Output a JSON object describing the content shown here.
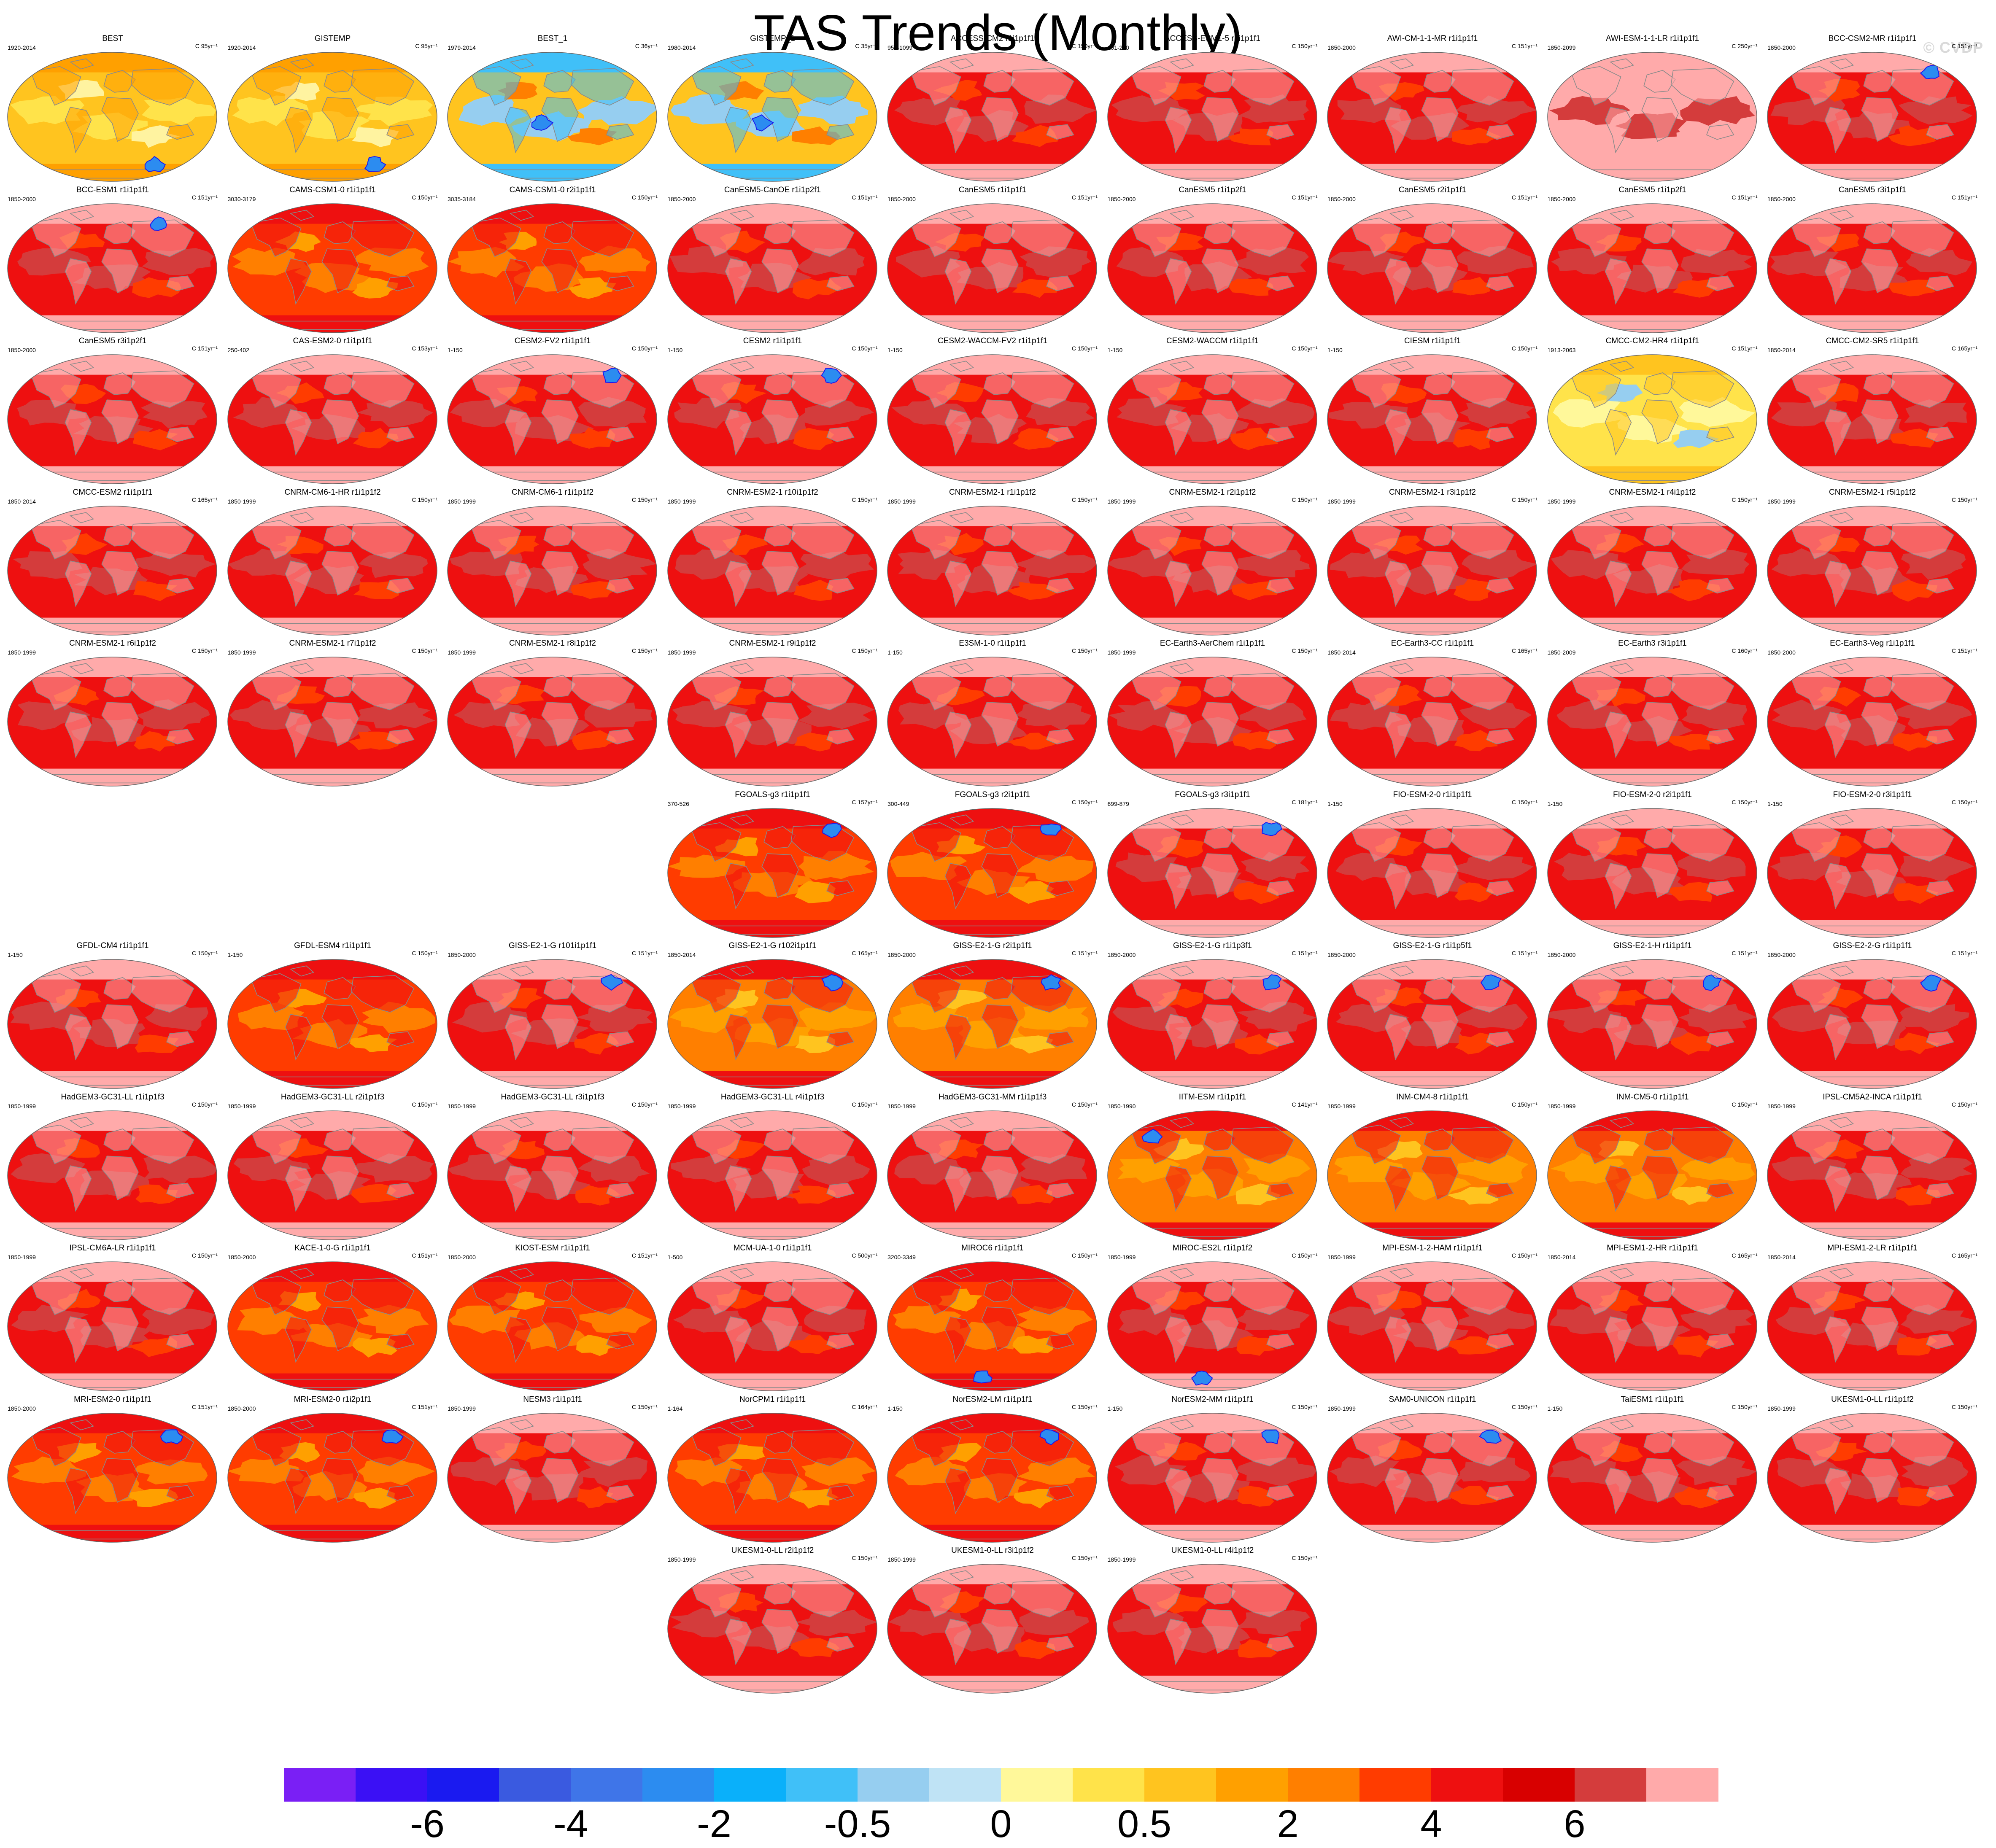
{
  "title": "TAS Trends (Monthly)",
  "watermark": "© CVDP",
  "colorbar": {
    "colors": [
      "#7a1ff5",
      "#3b10f5",
      "#1a1af0",
      "#3a5ae0",
      "#3f75e8",
      "#2c8cf0",
      "#0ab0fa",
      "#40c0f8",
      "#96cef0",
      "#bfe3f5",
      "#fff89a",
      "#ffe34a",
      "#ffc41f",
      "#ffa000",
      "#ff7f00",
      "#ff3c00",
      "#ee1010",
      "#d80000",
      "#d43c3c",
      "#ffaaaa"
    ],
    "labels": [
      {
        "text": "-6",
        "index": 2
      },
      {
        "text": "-4",
        "index": 4
      },
      {
        "text": "-2",
        "index": 6
      },
      {
        "text": "-0.5",
        "index": 8
      },
      {
        "text": "0",
        "index": 10
      },
      {
        "text": "0.5",
        "index": 12
      },
      {
        "text": "2",
        "index": 14
      },
      {
        "text": "4",
        "index": 16
      },
      {
        "text": "6",
        "index": 18
      }
    ]
  },
  "style_palettes": {
    "obs": [
      "#ffc41f",
      "#ffe34a",
      "#ffa000",
      "#fff3a0"
    ],
    "obs1": [
      "#ffc41f",
      "#96cef0",
      "#40c0f8",
      "#ff7f00"
    ],
    "model": [
      "#ee1010",
      "#d43c3c",
      "#ffaaaa",
      "#ff3c00"
    ],
    "awi": [
      "#ffaaaa",
      "#d43c3c",
      "#ffaaaa",
      "#ffaaaa"
    ],
    "cmcc_hr4": [
      "#ffe34a",
      "#fff89a",
      "#ffc41f",
      "#96cef0"
    ],
    "orange": [
      "#ff7f00",
      "#ffa000",
      "#ee1010",
      "#ffc41f"
    ],
    "orangered": [
      "#ff3c00",
      "#ff7f00",
      "#ee1010",
      "#ffa000"
    ]
  },
  "panels": [
    {
      "row": 0,
      "col": 0,
      "title": "BEST",
      "range": "1920-2014",
      "rate": "C 95yr⁻¹",
      "style": "obs",
      "blue": [
        0.7,
        0.82
      ]
    },
    {
      "row": 0,
      "col": 1,
      "title": "GISTEMP",
      "range": "1920-2014",
      "rate": "C 95yr⁻¹",
      "style": "obs",
      "blue": [
        0.7,
        0.82
      ]
    },
    {
      "row": 0,
      "col": 2,
      "title": "BEST_1",
      "range": "1979-2014",
      "rate": "C 36yr⁻¹",
      "style": "obs1",
      "blue": [
        0.45,
        0.5
      ]
    },
    {
      "row": 0,
      "col": 3,
      "title": "GISTEMP_1",
      "range": "1980-2014",
      "rate": "C 35yr⁻¹",
      "style": "obs1",
      "blue": [
        0.45,
        0.5
      ]
    },
    {
      "row": 0,
      "col": 4,
      "title": "ACCESS-CM2 r1i1p1f1",
      "range": "950-1099",
      "rate": "C 150yr⁻¹",
      "style": "model"
    },
    {
      "row": 0,
      "col": 5,
      "title": "ACCESS-ESM1-5 r1i1p1f1",
      "range": "101-250",
      "rate": "C 150yr⁻¹",
      "style": "model"
    },
    {
      "row": 0,
      "col": 6,
      "title": "AWI-CM-1-1-MR r1i1p1f1",
      "range": "1850-2000",
      "rate": "C 151yr⁻¹",
      "style": "model"
    },
    {
      "row": 0,
      "col": 7,
      "title": "AWI-ESM-1-1-LR r1i1p1f1",
      "range": "1850-2099",
      "rate": "C 250yr⁻¹",
      "style": "awi"
    },
    {
      "row": 0,
      "col": 8,
      "title": "BCC-CSM2-MR r1i1p1f1",
      "range": "1850-2000",
      "rate": "C 151yr⁻¹",
      "style": "model",
      "blue": [
        0.78,
        0.12
      ]
    },
    {
      "row": 1,
      "col": 0,
      "title": "BCC-ESM1 r1i1p1f1",
      "range": "1850-2000",
      "rate": "C 151yr⁻¹",
      "style": "model",
      "blue": [
        0.72,
        0.12
      ]
    },
    {
      "row": 1,
      "col": 1,
      "title": "CAMS-CSM1-0 r1i1p1f1",
      "range": "3030-3179",
      "rate": "C 150yr⁻¹",
      "style": "orangered"
    },
    {
      "row": 1,
      "col": 2,
      "title": "CAMS-CSM1-0 r2i1p1f1",
      "range": "3035-3184",
      "rate": "C 150yr⁻¹",
      "style": "orangered"
    },
    {
      "row": 1,
      "col": 3,
      "title": "CanESM5-CanOE r1i1p2f1",
      "range": "1850-2000",
      "rate": "C 151yr⁻¹",
      "style": "model"
    },
    {
      "row": 1,
      "col": 4,
      "title": "CanESM5 r1i1p1f1",
      "range": "1850-2000",
      "rate": "C 151yr⁻¹",
      "style": "model"
    },
    {
      "row": 1,
      "col": 5,
      "title": "CanESM5 r1i1p2f1",
      "range": "1850-2000",
      "rate": "C 151yr⁻¹",
      "style": "model"
    },
    {
      "row": 1,
      "col": 6,
      "title": "CanESM5 r2i1p1f1",
      "range": "1850-2000",
      "rate": "C 151yr⁻¹",
      "style": "model"
    },
    {
      "row": 1,
      "col": 7,
      "title": "CanESM5 r1i1p2f1",
      "range": "1850-2000",
      "rate": "C 151yr⁻¹",
      "style": "model"
    },
    {
      "row": 1,
      "col": 8,
      "title": "CanESM5 r3i1p1f1",
      "range": "1850-2000",
      "rate": "C 151yr⁻¹",
      "style": "model"
    },
    {
      "row": 2,
      "col": 0,
      "title": "CanESM5 r3i1p2f1",
      "range": "1850-2000",
      "rate": "C 151yr⁻¹",
      "style": "model"
    },
    {
      "row": 2,
      "col": 1,
      "title": "CAS-ESM2-0 r1i1p1f1",
      "range": "250-402",
      "rate": "C 153yr⁻¹",
      "style": "model"
    },
    {
      "row": 2,
      "col": 2,
      "title": "CESM2-FV2 r1i1p1f1",
      "range": "1-150",
      "rate": "C 150yr⁻¹",
      "style": "model",
      "blue": [
        0.78,
        0.12
      ]
    },
    {
      "row": 2,
      "col": 3,
      "title": "CESM2 r1i1p1f1",
      "range": "1-150",
      "rate": "C 150yr⁻¹",
      "style": "model",
      "blue": [
        0.78,
        0.12
      ]
    },
    {
      "row": 2,
      "col": 4,
      "title": "CESM2-WACCM-FV2 r1i1p1f1",
      "range": "1-150",
      "rate": "C 150yr⁻¹",
      "style": "model"
    },
    {
      "row": 2,
      "col": 5,
      "title": "CESM2-WACCM r1i1p1f1",
      "range": "1-150",
      "rate": "C 150yr⁻¹",
      "style": "model"
    },
    {
      "row": 2,
      "col": 6,
      "title": "CIESM r1i1p1f1",
      "range": "1-150",
      "rate": "C 150yr⁻¹",
      "style": "model"
    },
    {
      "row": 2,
      "col": 7,
      "title": "CMCC-CM2-HR4 r1i1p1f1",
      "range": "1913-2063",
      "rate": "C 151yr⁻¹",
      "style": "cmcc_hr4"
    },
    {
      "row": 2,
      "col": 8,
      "title": "CMCC-CM2-SR5 r1i1p1f1",
      "range": "1850-2014",
      "rate": "C 165yr⁻¹",
      "style": "model"
    },
    {
      "row": 3,
      "col": 0,
      "title": "CMCC-ESM2 r1i1p1f1",
      "range": "1850-2014",
      "rate": "C 165yr⁻¹",
      "style": "model"
    },
    {
      "row": 3,
      "col": 1,
      "title": "CNRM-CM6-1-HR r1i1p1f2",
      "range": "1850-1999",
      "rate": "C 150yr⁻¹",
      "style": "model"
    },
    {
      "row": 3,
      "col": 2,
      "title": "CNRM-CM6-1 r1i1p1f2",
      "range": "1850-1999",
      "rate": "C 150yr⁻¹",
      "style": "model"
    },
    {
      "row": 3,
      "col": 3,
      "title": "CNRM-ESM2-1 r10i1p1f2",
      "range": "1850-1999",
      "rate": "C 150yr⁻¹",
      "style": "model"
    },
    {
      "row": 3,
      "col": 4,
      "title": "CNRM-ESM2-1 r1i1p1f2",
      "range": "1850-1999",
      "rate": "C 150yr⁻¹",
      "style": "model"
    },
    {
      "row": 3,
      "col": 5,
      "title": "CNRM-ESM2-1 r2i1p1f2",
      "range": "1850-1999",
      "rate": "C 150yr⁻¹",
      "style": "model"
    },
    {
      "row": 3,
      "col": 6,
      "title": "CNRM-ESM2-1 r3i1p1f2",
      "range": "1850-1999",
      "rate": "C 150yr⁻¹",
      "style": "model"
    },
    {
      "row": 3,
      "col": 7,
      "title": "CNRM-ESM2-1 r4i1p1f2",
      "range": "1850-1999",
      "rate": "C 150yr⁻¹",
      "style": "model"
    },
    {
      "row": 3,
      "col": 8,
      "title": "CNRM-ESM2-1 r5i1p1f2",
      "range": "1850-1999",
      "rate": "C 150yr⁻¹",
      "style": "model"
    },
    {
      "row": 4,
      "col": 0,
      "title": "CNRM-ESM2-1 r6i1p1f2",
      "range": "1850-1999",
      "rate": "C 150yr⁻¹",
      "style": "model"
    },
    {
      "row": 4,
      "col": 1,
      "title": "CNRM-ESM2-1 r7i1p1f2",
      "range": "1850-1999",
      "rate": "C 150yr⁻¹",
      "style": "model"
    },
    {
      "row": 4,
      "col": 2,
      "title": "CNRM-ESM2-1 r8i1p1f2",
      "range": "1850-1999",
      "rate": "C 150yr⁻¹",
      "style": "model"
    },
    {
      "row": 4,
      "col": 3,
      "title": "CNRM-ESM2-1 r9i1p1f2",
      "range": "1850-1999",
      "rate": "C 150yr⁻¹",
      "style": "model"
    },
    {
      "row": 4,
      "col": 4,
      "title": "E3SM-1-0 r1i1p1f1",
      "range": "1-150",
      "rate": "C 150yr⁻¹",
      "style": "model"
    },
    {
      "row": 4,
      "col": 5,
      "title": "EC-Earth3-AerChem r1i1p1f1",
      "range": "1850-1999",
      "rate": "C 150yr⁻¹",
      "style": "model"
    },
    {
      "row": 4,
      "col": 6,
      "title": "EC-Earth3-CC r1i1p1f1",
      "range": "1850-2014",
      "rate": "C 165yr⁻¹",
      "style": "model"
    },
    {
      "row": 4,
      "col": 7,
      "title": "EC-Earth3 r3i1p1f1",
      "range": "1850-2009",
      "rate": "C 160yr⁻¹",
      "style": "model"
    },
    {
      "row": 4,
      "col": 8,
      "title": "EC-Earth3-Veg r1i1p1f1",
      "range": "1850-2000",
      "rate": "C 151yr⁻¹",
      "style": "model"
    },
    {
      "row": 5,
      "col": 3,
      "title": "FGOALS-g3 r1i1p1f1",
      "range": "370-526",
      "rate": "C 157yr⁻¹",
      "style": "orangered",
      "blue": [
        0.78,
        0.12
      ]
    },
    {
      "row": 5,
      "col": 4,
      "title": "FGOALS-g3 r2i1p1f1",
      "range": "300-449",
      "rate": "C 150yr⁻¹",
      "style": "orangered",
      "blue": [
        0.78,
        0.12
      ]
    },
    {
      "row": 5,
      "col": 5,
      "title": "FGOALS-g3 r3i1p1f1",
      "range": "699-879",
      "rate": "C 181yr⁻¹",
      "style": "model",
      "blue": [
        0.78,
        0.12
      ]
    },
    {
      "row": 5,
      "col": 6,
      "title": "FIO-ESM-2-0 r1i1p1f1",
      "range": "1-150",
      "rate": "C 150yr⁻¹",
      "style": "model"
    },
    {
      "row": 5,
      "col": 7,
      "title": "FIO-ESM-2-0 r2i1p1f1",
      "range": "1-150",
      "rate": "C 150yr⁻¹",
      "style": "model"
    },
    {
      "row": 5,
      "col": 8,
      "title": "FIO-ESM-2-0 r3i1p1f1",
      "range": "1-150",
      "rate": "C 150yr⁻¹",
      "style": "model"
    },
    {
      "row": 6,
      "col": 0,
      "title": "GFDL-CM4 r1i1p1f1",
      "range": "1-150",
      "rate": "C 150yr⁻¹",
      "style": "model"
    },
    {
      "row": 6,
      "col": 1,
      "title": "GFDL-ESM4 r1i1p1f1",
      "range": "1-150",
      "rate": "C 150yr⁻¹",
      "style": "orangered"
    },
    {
      "row": 6,
      "col": 2,
      "title": "GISS-E2-1-G r101i1p1f1",
      "range": "1850-2000",
      "rate": "C 151yr⁻¹",
      "style": "model",
      "blue": [
        0.78,
        0.14
      ]
    },
    {
      "row": 6,
      "col": 3,
      "title": "GISS-E2-1-G r102i1p1f1",
      "range": "1850-2014",
      "rate": "C 165yr⁻¹",
      "style": "orange",
      "blue": [
        0.78,
        0.14
      ]
    },
    {
      "row": 6,
      "col": 4,
      "title": "GISS-E2-1-G r2i1p1f1",
      "range": "1850-2000",
      "rate": "C 151yr⁻¹",
      "style": "orange",
      "blue": [
        0.78,
        0.14
      ]
    },
    {
      "row": 6,
      "col": 5,
      "title": "GISS-E2-1-G r1i1p3f1",
      "range": "1850-2000",
      "rate": "C 151yr⁻¹",
      "style": "model",
      "blue": [
        0.78,
        0.14
      ]
    },
    {
      "row": 6,
      "col": 6,
      "title": "GISS-E2-1-G r1i1p5f1",
      "range": "1850-2000",
      "rate": "C 151yr⁻¹",
      "style": "model",
      "blue": [
        0.78,
        0.14
      ]
    },
    {
      "row": 6,
      "col": 7,
      "title": "GISS-E2-1-H r1i1p1f1",
      "range": "1850-2000",
      "rate": "C 151yr⁻¹",
      "style": "model",
      "blue": [
        0.78,
        0.14
      ]
    },
    {
      "row": 6,
      "col": 8,
      "title": "GISS-E2-2-G r1i1p1f1",
      "range": "1850-2000",
      "rate": "C 151yr⁻¹",
      "style": "model",
      "blue": [
        0.78,
        0.14
      ]
    },
    {
      "row": 7,
      "col": 0,
      "title": "HadGEM3-GC31-LL r1i1p1f3",
      "range": "1850-1999",
      "rate": "C 150yr⁻¹",
      "style": "model"
    },
    {
      "row": 7,
      "col": 1,
      "title": "HadGEM3-GC31-LL r2i1p1f3",
      "range": "1850-1999",
      "rate": "C 150yr⁻¹",
      "style": "model"
    },
    {
      "row": 7,
      "col": 2,
      "title": "HadGEM3-GC31-LL r3i1p1f3",
      "range": "1850-1999",
      "rate": "C 150yr⁻¹",
      "style": "model"
    },
    {
      "row": 7,
      "col": 3,
      "title": "HadGEM3-GC31-LL r4i1p1f3",
      "range": "1850-1999",
      "rate": "C 150yr⁻¹",
      "style": "model"
    },
    {
      "row": 7,
      "col": 4,
      "title": "HadGEM3-GC31-MM r1i1p1f3",
      "range": "1850-1999",
      "rate": "C 150yr⁻¹",
      "style": "model"
    },
    {
      "row": 7,
      "col": 5,
      "title": "IITM-ESM r1i1p1f1",
      "range": "1850-1990",
      "rate": "C 141yr⁻¹",
      "style": "orange",
      "blue": [
        0.22,
        0.16
      ]
    },
    {
      "row": 7,
      "col": 6,
      "title": "INM-CM4-8 r1i1p1f1",
      "range": "1850-1999",
      "rate": "C 150yr⁻¹",
      "style": "orange"
    },
    {
      "row": 7,
      "col": 7,
      "title": "INM-CM5-0 r1i1p1f1",
      "range": "1850-1999",
      "rate": "C 150yr⁻¹",
      "style": "orange"
    },
    {
      "row": 7,
      "col": 8,
      "title": "IPSL-CM5A2-INCA r1i1p1f1",
      "range": "1850-1999",
      "rate": "C 150yr⁻¹",
      "style": "model"
    },
    {
      "row": 8,
      "col": 0,
      "title": "IPSL-CM6A-LR r1i1p1f1",
      "range": "1850-1999",
      "rate": "C 150yr⁻¹",
      "style": "model"
    },
    {
      "row": 8,
      "col": 1,
      "title": "KACE-1-0-G r1i1p1f1",
      "range": "1850-2000",
      "rate": "C 151yr⁻¹",
      "style": "orangered"
    },
    {
      "row": 8,
      "col": 2,
      "title": "KIOST-ESM r1i1p1f1",
      "range": "1850-2000",
      "rate": "C 151yr⁻¹",
      "style": "orangered"
    },
    {
      "row": 8,
      "col": 3,
      "title": "MCM-UA-1-0 r1i1p1f1",
      "range": "1-500",
      "rate": "C 500yr⁻¹",
      "style": "model"
    },
    {
      "row": 8,
      "col": 4,
      "title": "MIROC6 r1i1p1f1",
      "range": "3200-3349",
      "rate": "C 150yr⁻¹",
      "style": "orangered",
      "blue": [
        0.45,
        0.85
      ]
    },
    {
      "row": 8,
      "col": 5,
      "title": "MIROC-ES2L r1i1p1f2",
      "range": "1850-1999",
      "rate": "C 150yr⁻¹",
      "style": "model",
      "blue": [
        0.45,
        0.85
      ]
    },
    {
      "row": 8,
      "col": 6,
      "title": "MPI-ESM-1-2-HAM r1i1p1f1",
      "range": "1850-1999",
      "rate": "C 150yr⁻¹",
      "style": "model"
    },
    {
      "row": 8,
      "col": 7,
      "title": "MPI-ESM1-2-HR r1i1p1f1",
      "range": "1850-2014",
      "rate": "C 165yr⁻¹",
      "style": "model"
    },
    {
      "row": 8,
      "col": 8,
      "title": "MPI-ESM1-2-LR r1i1p1f1",
      "range": "1850-2014",
      "rate": "C 165yr⁻¹",
      "style": "model"
    },
    {
      "row": 9,
      "col": 0,
      "title": "MRI-ESM2-0 r1i1p1f1",
      "range": "1850-2000",
      "rate": "C 151yr⁻¹",
      "style": "orangered",
      "blue": [
        0.78,
        0.14
      ]
    },
    {
      "row": 9,
      "col": 1,
      "title": "MRI-ESM2-0 r1i2p1f1",
      "range": "1850-2000",
      "rate": "C 151yr⁻¹",
      "style": "orangered",
      "blue": [
        0.78,
        0.14
      ]
    },
    {
      "row": 9,
      "col": 2,
      "title": "NESM3 r1i1p1f1",
      "range": "1850-1999",
      "rate": "C 150yr⁻¹",
      "style": "model"
    },
    {
      "row": 9,
      "col": 3,
      "title": "NorCPM1 r1i1p1f1",
      "range": "1-164",
      "rate": "C 164yr⁻¹",
      "style": "orangered"
    },
    {
      "row": 9,
      "col": 4,
      "title": "NorESM2-LM r1i1p1f1",
      "range": "1-150",
      "rate": "C 150yr⁻¹",
      "style": "orangered",
      "blue": [
        0.78,
        0.14
      ]
    },
    {
      "row": 9,
      "col": 5,
      "title": "NorESM2-MM r1i1p1f1",
      "range": "1-150",
      "rate": "C 150yr⁻¹",
      "style": "model",
      "blue": [
        0.78,
        0.14
      ]
    },
    {
      "row": 9,
      "col": 6,
      "title": "SAM0-UNICON r1i1p1f1",
      "range": "1850-1999",
      "rate": "C 150yr⁻¹",
      "style": "model",
      "blue": [
        0.78,
        0.14
      ]
    },
    {
      "row": 9,
      "col": 7,
      "title": "TaiESM1 r1i1p1f1",
      "range": "1-150",
      "rate": "C 150yr⁻¹",
      "style": "model"
    },
    {
      "row": 9,
      "col": 8,
      "title": "UKESM1-0-LL r1i1p1f2",
      "range": "1850-1999",
      "rate": "C 150yr⁻¹",
      "style": "model"
    },
    {
      "row": 10,
      "col": 3,
      "title": "UKESM1-0-LL r2i1p1f2",
      "range": "1850-1999",
      "rate": "C 150yr⁻¹",
      "style": "model"
    },
    {
      "row": 10,
      "col": 4,
      "title": "UKESM1-0-LL r3i1p1f2",
      "range": "1850-1999",
      "rate": "C 150yr⁻¹",
      "style": "model"
    },
    {
      "row": 10,
      "col": 5,
      "title": "UKESM1-0-LL r4i1p1f2",
      "range": "1850-1999",
      "rate": "C 150yr⁻¹",
      "style": "model"
    }
  ]
}
